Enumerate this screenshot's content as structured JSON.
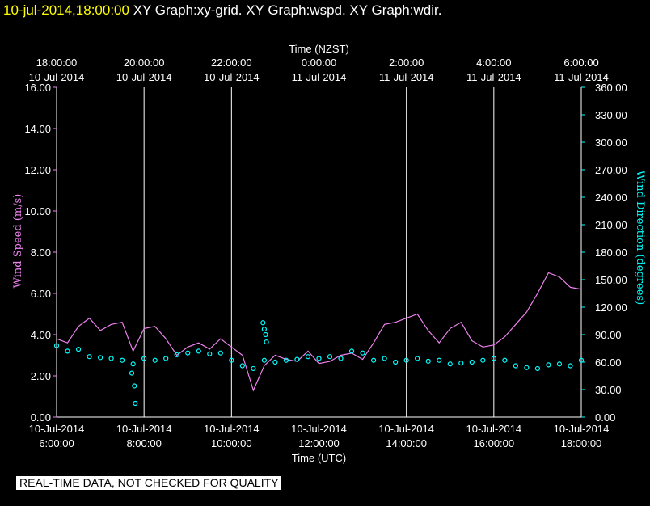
{
  "header": {
    "timestamp": "10-jul-2014,18:00:00",
    "graph_titles": "XY Graph:xy-grid.  XY Graph:wspd.  XY Graph:wdir."
  },
  "notice": "REAL-TIME DATA, NOT CHECKED FOR QUALITY",
  "colors": {
    "speed": "#ee82ee",
    "direction": "#00ffff",
    "grid": "#ffffff",
    "background": "#000000",
    "header_timestamp": "#ffff00"
  },
  "chart_data": {
    "type": "line",
    "top_axis": {
      "label": "Time (NZST)",
      "ticks": [
        {
          "hour": 0,
          "time": "18:00:00",
          "date": "10-Jul-2014"
        },
        {
          "hour": 2,
          "time": "20:00:00",
          "date": "10-Jul-2014"
        },
        {
          "hour": 4,
          "time": "22:00:00",
          "date": "10-Jul-2014"
        },
        {
          "hour": 6,
          "time": "0:00:00",
          "date": "11-Jul-2014"
        },
        {
          "hour": 8,
          "time": "2:00:00",
          "date": "11-Jul-2014"
        },
        {
          "hour": 10,
          "time": "4:00:00",
          "date": "11-Jul-2014"
        },
        {
          "hour": 12,
          "time": "6:00:00",
          "date": "11-Jul-2014"
        }
      ]
    },
    "bottom_axis": {
      "label": "Time (UTC)",
      "ticks": [
        {
          "hour": 0,
          "date": "10-Jul-2014",
          "time": "6:00:00"
        },
        {
          "hour": 2,
          "date": "10-Jul-2014",
          "time": "8:00:00"
        },
        {
          "hour": 4,
          "date": "10-Jul-2014",
          "time": "10:00:00"
        },
        {
          "hour": 6,
          "date": "10-Jul-2014",
          "time": "12:00:00"
        },
        {
          "hour": 8,
          "date": "10-Jul-2014",
          "time": "14:00:00"
        },
        {
          "hour": 10,
          "date": "10-Jul-2014",
          "time": "16:00:00"
        },
        {
          "hour": 12,
          "date": "10-Jul-2014",
          "time": "18:00:00"
        }
      ]
    },
    "xlim_hours_utc": [
      6,
      18
    ],
    "left_axis": {
      "label": "Wind Speed (m/s)",
      "ylim": [
        0,
        16
      ],
      "ticks": [
        "0.00",
        "2.00",
        "4.00",
        "6.00",
        "8.00",
        "10.00",
        "12.00",
        "14.00",
        "16.00"
      ]
    },
    "right_axis": {
      "label": "Wind Direction (degrees)",
      "ylim": [
        0,
        360
      ],
      "ticks": [
        "0.00",
        "30.00",
        "60.00",
        "90.00",
        "120.00",
        "150.00",
        "180.00",
        "210.00",
        "240.00",
        "270.00",
        "300.00",
        "330.00",
        "360.00"
      ]
    },
    "vertical_grid": true,
    "series": [
      {
        "name": "wspd",
        "axis": "left",
        "style": "line",
        "x_hours_utc": [
          6.0,
          6.25,
          6.5,
          6.75,
          7.0,
          7.25,
          7.5,
          7.75,
          8.0,
          8.25,
          8.5,
          8.75,
          9.0,
          9.25,
          9.5,
          9.75,
          10.0,
          10.25,
          10.5,
          10.75,
          11.0,
          11.25,
          11.5,
          11.75,
          12.0,
          12.25,
          12.5,
          12.75,
          13.0,
          13.25,
          13.5,
          13.75,
          14.0,
          14.25,
          14.5,
          14.75,
          15.0,
          15.25,
          15.5,
          15.75,
          16.0,
          16.25,
          16.5,
          16.75,
          17.0,
          17.25,
          17.5,
          17.75,
          18.0
        ],
        "values": [
          3.8,
          3.6,
          4.4,
          4.8,
          4.2,
          4.5,
          4.6,
          3.2,
          4.3,
          4.4,
          3.8,
          3.0,
          3.4,
          3.6,
          3.3,
          3.8,
          3.4,
          3.0,
          1.3,
          2.5,
          3.0,
          2.8,
          2.7,
          3.2,
          2.6,
          2.7,
          3.0,
          3.1,
          2.8,
          3.6,
          4.5,
          4.6,
          4.8,
          5.0,
          4.2,
          3.6,
          4.3,
          4.6,
          3.7,
          3.4,
          3.5,
          3.9,
          4.5,
          5.1,
          6.0,
          7.0,
          6.8,
          6.3,
          6.2
        ]
      },
      {
        "name": "wdir",
        "axis": "right",
        "style": "markers",
        "x_hours_utc": [
          6.0,
          6.25,
          6.5,
          6.75,
          7.0,
          7.25,
          7.5,
          7.75,
          8.0,
          8.25,
          8.5,
          8.75,
          9.0,
          9.25,
          9.5,
          9.75,
          10.0,
          10.25,
          10.5,
          10.75,
          11.0,
          11.25,
          11.5,
          11.75,
          12.0,
          12.25,
          12.5,
          12.75,
          13.0,
          13.25,
          13.5,
          13.75,
          14.0,
          14.25,
          14.5,
          14.75,
          15.0,
          15.25,
          15.5,
          15.75,
          16.0,
          16.25,
          16.5,
          16.75,
          17.0,
          17.25,
          17.5,
          17.75,
          18.0
        ],
        "values": [
          78,
          72,
          74,
          66,
          65,
          64,
          62,
          58,
          64,
          62,
          64,
          68,
          70,
          72,
          69,
          70,
          62,
          56,
          53,
          62,
          60,
          62,
          63,
          66,
          64,
          66,
          64,
          72,
          70,
          62,
          64,
          60,
          62,
          64,
          61,
          62,
          58,
          59,
          60,
          62,
          64,
          62,
          56,
          54,
          53,
          57,
          58,
          56,
          62
        ],
        "extra_points": [
          {
            "x_hours_utc": 7.72,
            "value": 48
          },
          {
            "x_hours_utc": 7.78,
            "value": 34
          },
          {
            "x_hours_utc": 7.8,
            "value": 15
          },
          {
            "x_hours_utc": 10.72,
            "value": 103
          },
          {
            "x_hours_utc": 10.75,
            "value": 96
          },
          {
            "x_hours_utc": 10.78,
            "value": 90
          },
          {
            "x_hours_utc": 10.8,
            "value": 82
          }
        ]
      }
    ]
  }
}
